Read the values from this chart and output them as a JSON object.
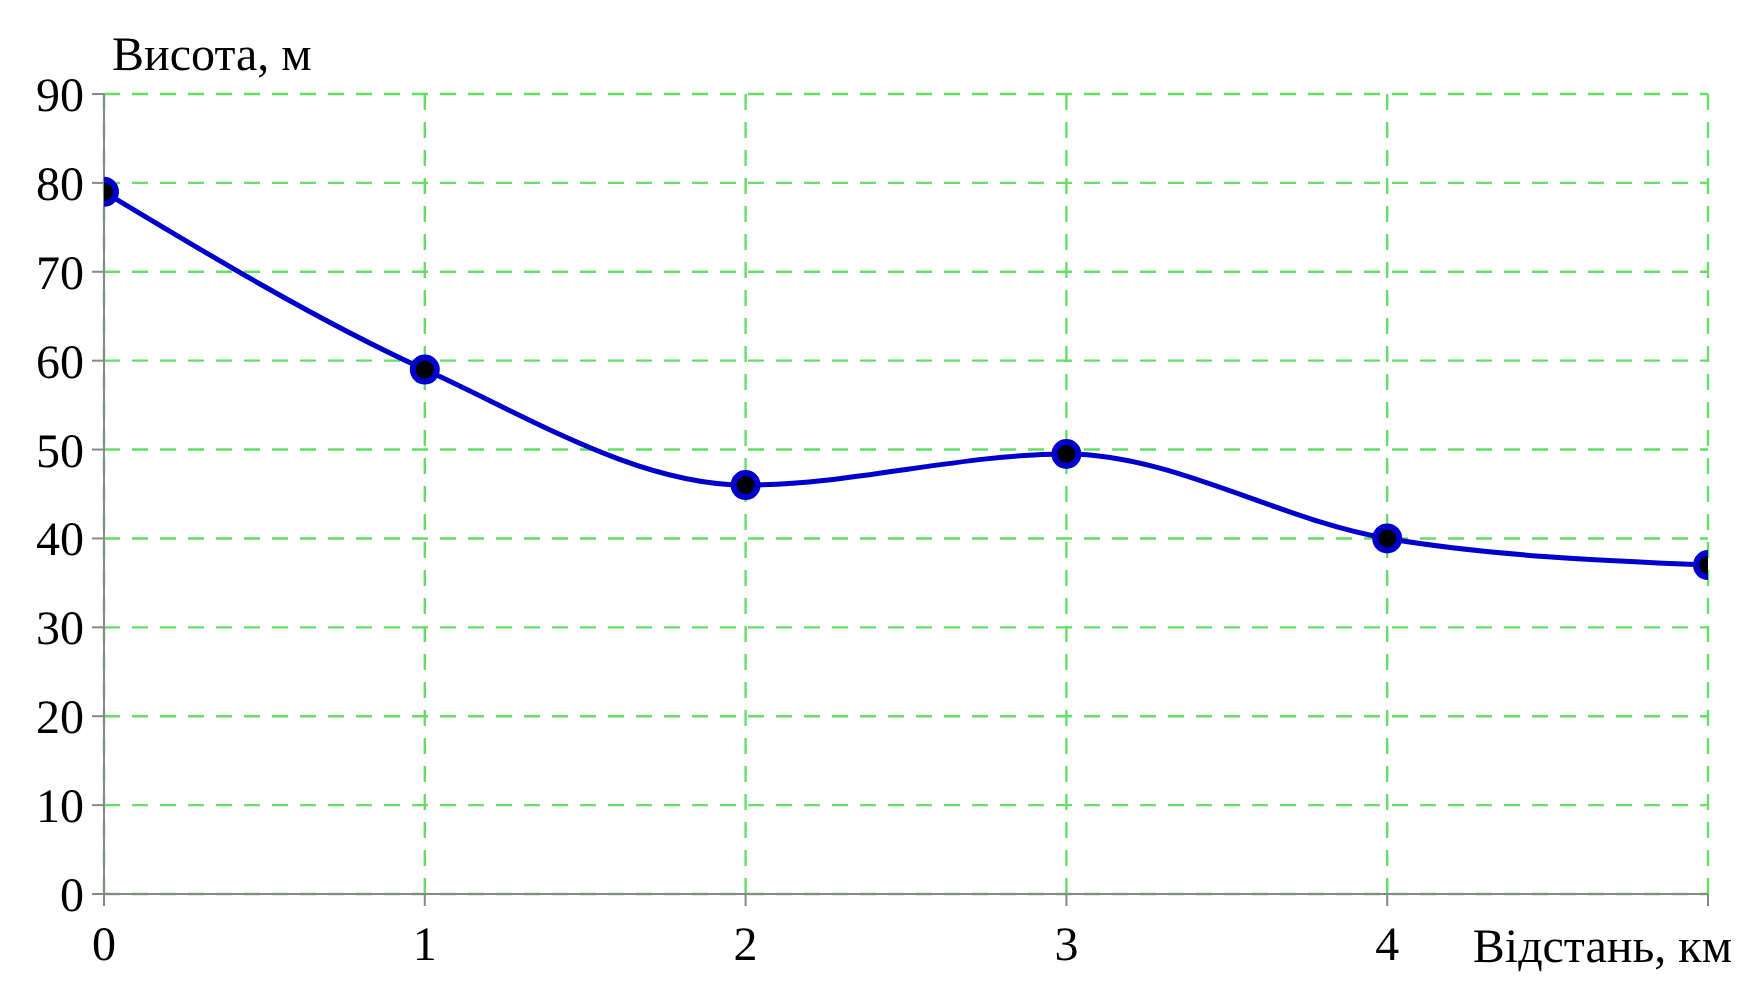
{
  "chart_data": {
    "type": "line",
    "xlabel": "Відстань, км",
    "ylabel": "Висота, м",
    "x": [
      0,
      1,
      2,
      3,
      4,
      5
    ],
    "series": [
      {
        "color": "#0000cc",
        "values": [
          79,
          59,
          46,
          49.5,
          40,
          37
        ]
      }
    ],
    "xlim": [
      0,
      5
    ],
    "xticks": [
      0,
      1,
      2,
      3,
      4,
      {
        "value": 5,
        "label": null
      }
    ],
    "ylim": [
      0,
      90
    ],
    "yticks": [
      0,
      10,
      20,
      30,
      40,
      50,
      60,
      70,
      80,
      90
    ],
    "grid": true,
    "marker": "circle",
    "line_style": "solid"
  }
}
